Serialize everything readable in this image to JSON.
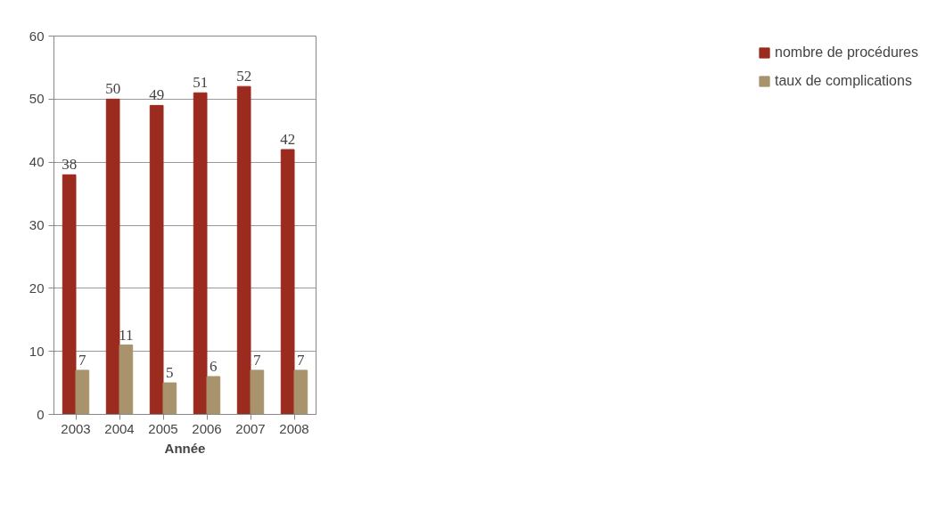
{
  "chart_data": {
    "type": "bar",
    "xlabel": "Année",
    "categories": [
      "2003",
      "2004",
      "2005",
      "2006",
      "2007",
      "2008"
    ],
    "series": [
      {
        "name": "nombre de procédures",
        "color": "#9b2b1f",
        "values": [
          38,
          50,
          49,
          51,
          52,
          42
        ]
      },
      {
        "name": "taux de complications",
        "color": "#a8936c",
        "values": [
          7,
          11,
          5,
          6,
          7,
          7
        ]
      }
    ],
    "ylim": [
      0,
      60
    ],
    "yticks": [
      0,
      10,
      20,
      30,
      40,
      50,
      60
    ],
    "grid": "y",
    "legend": "right",
    "data_labels": true
  }
}
